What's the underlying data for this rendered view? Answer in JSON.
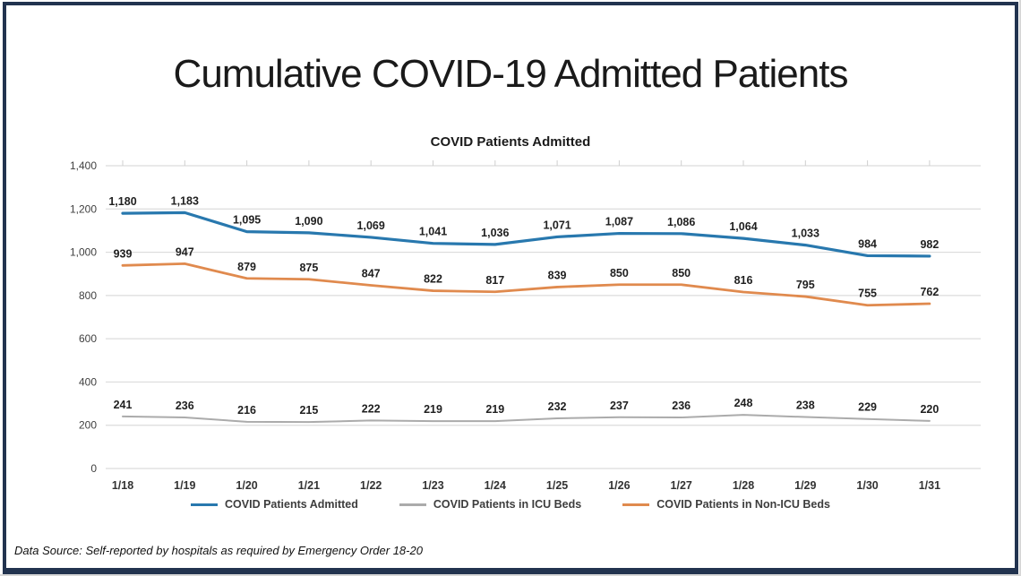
{
  "page": {
    "title": "Cumulative COVID-19 Admitted Patients",
    "data_source": "Data Source: Self-reported by hospitals as required by Emergency Order 18-20",
    "frame_color": "#22334F"
  },
  "chart_data": {
    "type": "line",
    "title": "COVID Patients Admitted",
    "categories": [
      "1/18",
      "1/19",
      "1/20",
      "1/21",
      "1/22",
      "1/23",
      "1/24",
      "1/25",
      "1/26",
      "1/27",
      "1/28",
      "1/29",
      "1/30",
      "1/31"
    ],
    "series": [
      {
        "name": "COVID Patients Admitted",
        "color": "#2878AE",
        "values": [
          1180,
          1183,
          1095,
          1090,
          1069,
          1041,
          1036,
          1071,
          1087,
          1086,
          1064,
          1033,
          984,
          982
        ]
      },
      {
        "name": "COVID Patients in ICU Beds",
        "color": "#ABABAB",
        "values": [
          241,
          236,
          216,
          215,
          222,
          219,
          219,
          232,
          237,
          236,
          248,
          238,
          229,
          220
        ]
      },
      {
        "name": "COVID Patients in Non-ICU Beds",
        "color": "#E08A4E",
        "values": [
          939,
          947,
          879,
          875,
          847,
          822,
          817,
          839,
          850,
          850,
          816,
          795,
          755,
          762
        ]
      }
    ],
    "xlabel": "",
    "ylabel": "",
    "ylim": [
      0,
      1400
    ],
    "ytick_step": 200,
    "grid": true,
    "gridline_color": "#DCDCDC",
    "data_labels": true,
    "legend_position": "bottom"
  }
}
